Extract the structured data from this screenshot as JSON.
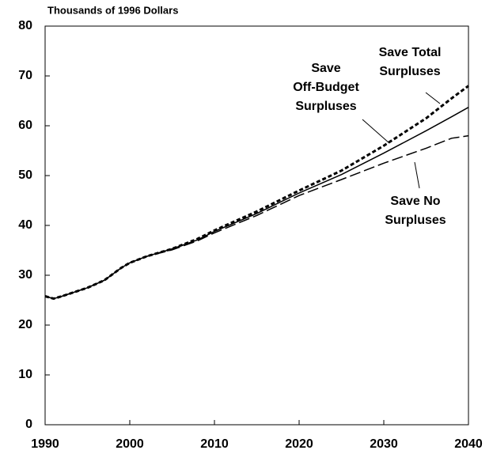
{
  "chart_data": {
    "type": "line",
    "title": "Thousands of 1996 Dollars",
    "x": [
      1990,
      1991,
      1992,
      1995,
      1997,
      1999,
      2000,
      2002,
      2005,
      2008,
      2010,
      2015,
      2020,
      2025,
      2030,
      2035,
      2038,
      2040
    ],
    "series": [
      {
        "name": "Save Total Surpluses",
        "color": "#000000",
        "style": "short-dash",
        "values": [
          25.8,
          25.3,
          25.8,
          27.5,
          29,
          31.5,
          32.5,
          33.8,
          35.3,
          37.3,
          39,
          42.8,
          47,
          51,
          56,
          61.5,
          65.5,
          68
        ]
      },
      {
        "name": "Save Off-Budget Surpluses",
        "color": "#000000",
        "style": "solid",
        "values": [
          25.8,
          25.3,
          25.8,
          27.5,
          29,
          31.5,
          32.5,
          33.8,
          35.3,
          37.1,
          38.8,
          42.4,
          46.5,
          50.2,
          54.5,
          59,
          61.8,
          63.7
        ]
      },
      {
        "name": "Save No Surpluses",
        "color": "#000000",
        "style": "long-dash",
        "values": [
          25.8,
          25.3,
          25.8,
          27.5,
          29,
          31.5,
          32.5,
          33.8,
          35.1,
          36.9,
          38.5,
          42,
          46,
          49.2,
          52.5,
          55.5,
          57.5,
          58
        ]
      }
    ],
    "annotations": [
      {
        "lines": [
          "Save Total",
          "Surpluses"
        ]
      },
      {
        "lines": [
          "Save",
          "Off-Budget",
          "Surpluses"
        ]
      },
      {
        "lines": [
          "Save No",
          "Surpluses"
        ]
      }
    ],
    "xlim": [
      1990,
      2040
    ],
    "xticks": [
      1990,
      2000,
      2010,
      2020,
      2030,
      2040
    ],
    "ylim": [
      0,
      80
    ],
    "yticks": [
      0,
      10,
      20,
      30,
      40,
      50,
      60,
      70,
      80
    ]
  }
}
